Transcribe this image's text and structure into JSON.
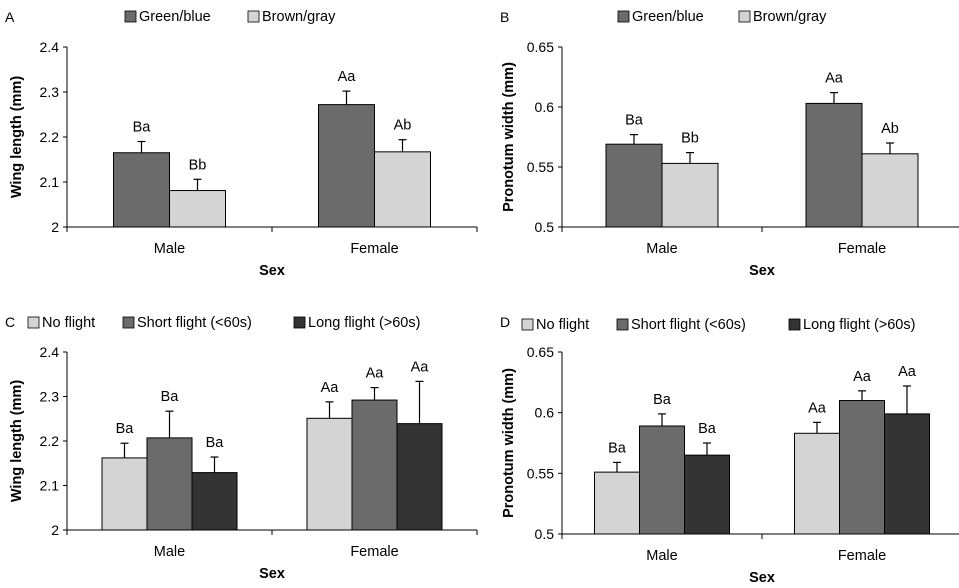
{
  "chart_data": [
    {
      "type": "bar",
      "panel_label": "A",
      "title": "",
      "xlabel": "Sex",
      "ylabel": "Wing length (mm)",
      "ylim": [
        2,
        2.4
      ],
      "yticks": [
        2,
        2.1,
        2.2,
        2.3,
        2.4
      ],
      "ytick_labels": [
        "2",
        "2.1",
        "2.2",
        "2.3",
        "2.4"
      ],
      "categories": [
        "Male",
        "Female"
      ],
      "legend_position": "top",
      "grid": false,
      "series": [
        {
          "name": "Green/blue",
          "color": "#6b6b6b",
          "values": [
            2.165,
            2.272
          ],
          "errors": [
            0.025,
            0.03
          ],
          "labels": [
            "Ba",
            "Aa"
          ]
        },
        {
          "name": "Brown/gray",
          "color": "#d4d4d4",
          "values": [
            2.081,
            2.167
          ],
          "errors": [
            0.025,
            0.027
          ],
          "labels": [
            "Bb",
            "Ab"
          ]
        }
      ]
    },
    {
      "type": "bar",
      "panel_label": "B",
      "title": "",
      "xlabel": "Sex",
      "ylabel": "Pronotum width (mm)",
      "ylim": [
        0.5,
        0.65
      ],
      "yticks": [
        0.5,
        0.55,
        0.6,
        0.65
      ],
      "ytick_labels": [
        "0.5",
        "0.55",
        "0.6",
        "0.65"
      ],
      "categories": [
        "Male",
        "Female"
      ],
      "legend_position": "top",
      "grid": false,
      "series": [
        {
          "name": "Green/blue",
          "color": "#6b6b6b",
          "values": [
            0.569,
            0.603
          ],
          "errors": [
            0.008,
            0.009
          ],
          "labels": [
            "Ba",
            "Aa"
          ]
        },
        {
          "name": "Brown/gray",
          "color": "#d4d4d4",
          "values": [
            0.553,
            0.561
          ],
          "errors": [
            0.009,
            0.009
          ],
          "labels": [
            "Bb",
            "Ab"
          ]
        }
      ]
    },
    {
      "type": "bar",
      "panel_label": "C",
      "title": "",
      "xlabel": "Sex",
      "ylabel": "Wing length (mm)",
      "ylim": [
        2,
        2.4
      ],
      "yticks": [
        2,
        2.1,
        2.2,
        2.3,
        2.4
      ],
      "ytick_labels": [
        "2",
        "2.1",
        "2.2",
        "2.3",
        "2.4"
      ],
      "categories": [
        "Male",
        "Female"
      ],
      "legend_position": "top",
      "grid": false,
      "series": [
        {
          "name": "No flight",
          "color": "#d4d4d4",
          "values": [
            2.162,
            2.251
          ],
          "errors": [
            0.033,
            0.037
          ],
          "labels": [
            "Ba",
            "Aa"
          ]
        },
        {
          "name": "Short flight (<60s)",
          "color": "#6b6b6b",
          "values": [
            2.207,
            2.292
          ],
          "errors": [
            0.06,
            0.028
          ],
          "labels": [
            "Ba",
            "Aa"
          ]
        },
        {
          "name": "Long flight (>60s)",
          "color": "#333333",
          "values": [
            2.129,
            2.239
          ],
          "errors": [
            0.035,
            0.095
          ],
          "labels": [
            "Ba",
            "Aa"
          ]
        }
      ]
    },
    {
      "type": "bar",
      "panel_label": "D",
      "title": "",
      "xlabel": "Sex",
      "ylabel": "Pronotum width (mm)",
      "ylim": [
        0.5,
        0.65
      ],
      "yticks": [
        0.5,
        0.55,
        0.6,
        0.65
      ],
      "ytick_labels": [
        "0.5",
        "0.55",
        "0.6",
        "0.65"
      ],
      "categories": [
        "Male",
        "Female"
      ],
      "legend_position": "top",
      "grid": false,
      "series": [
        {
          "name": "No flight",
          "color": "#d4d4d4",
          "values": [
            0.551,
            0.583
          ],
          "errors": [
            0.008,
            0.009
          ],
          "labels": [
            "Ba",
            "Aa"
          ]
        },
        {
          "name": "Short flight (<60s)",
          "color": "#6b6b6b",
          "values": [
            0.589,
            0.61
          ],
          "errors": [
            0.01,
            0.008
          ],
          "labels": [
            "Ba",
            "Aa"
          ]
        },
        {
          "name": "Long flight (>60s)",
          "color": "#333333",
          "values": [
            0.565,
            0.599
          ],
          "errors": [
            0.01,
            0.023
          ],
          "labels": [
            "Ba",
            "Aa"
          ]
        }
      ]
    }
  ]
}
